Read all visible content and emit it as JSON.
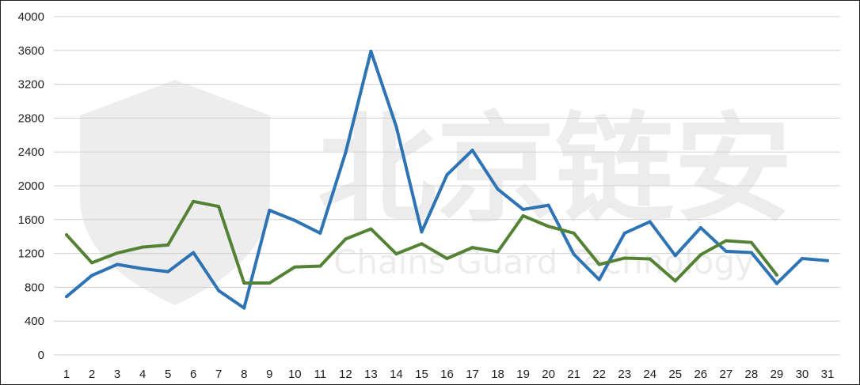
{
  "chart_data": {
    "type": "line",
    "title": "",
    "xlabel": "",
    "ylabel": "",
    "categories": [
      "1",
      "2",
      "3",
      "4",
      "5",
      "6",
      "7",
      "8",
      "9",
      "10",
      "11",
      "12",
      "13",
      "14",
      "15",
      "16",
      "17",
      "18",
      "19",
      "20",
      "21",
      "22",
      "23",
      "24",
      "25",
      "26",
      "27",
      "28",
      "29",
      "30",
      "31"
    ],
    "ylim": [
      0,
      4000
    ],
    "yticks": [
      0,
      400,
      800,
      1200,
      1600,
      2000,
      2400,
      2800,
      3200,
      3600,
      4000
    ],
    "ytick_labels": [
      "0",
      "400",
      "800",
      "1200",
      "1600",
      "2000",
      "2400",
      "2800",
      "3200",
      "3600",
      "4000"
    ],
    "grid": true,
    "legend": "none",
    "series": [
      {
        "color": "#2E74B5",
        "values": [
          690,
          940,
          1070,
          1020,
          985,
          1210,
          760,
          555,
          1710,
          1590,
          1440,
          2390,
          3590,
          2700,
          1455,
          2130,
          2420,
          1960,
          1720,
          1770,
          1190,
          890,
          1440,
          1575,
          1175,
          1505,
          1225,
          1210,
          845,
          1140,
          1115
        ]
      },
      {
        "color": "#548235",
        "values": [
          1420,
          1090,
          1205,
          1275,
          1300,
          1815,
          1755,
          850,
          850,
          1040,
          1050,
          1370,
          1490,
          1195,
          1315,
          1140,
          1270,
          1220,
          1645,
          1520,
          1440,
          1070,
          1145,
          1135,
          875,
          1185,
          1350,
          1330,
          945,
          null,
          null
        ]
      }
    ]
  },
  "watermark": {
    "cn_text": "北京链安",
    "en_text": "Chains Guard Technology"
  }
}
